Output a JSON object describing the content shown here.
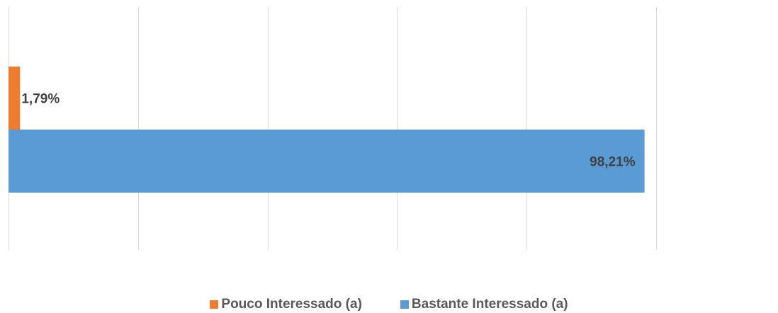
{
  "chart_data": {
    "type": "bar",
    "orientation": "horizontal",
    "title": "",
    "xlabel": "",
    "ylabel": "",
    "xlim": [
      0,
      100
    ],
    "grid": true,
    "legend_position": "bottom",
    "series": [
      {
        "name": "Pouco Interessado (a)",
        "value": 1.79,
        "label": "1,79%",
        "color": "#ed7d31"
      },
      {
        "name": "Bastante Interessado (a)",
        "value": 98.21,
        "label": "98,21%",
        "color": "#5b9bd5"
      }
    ]
  }
}
